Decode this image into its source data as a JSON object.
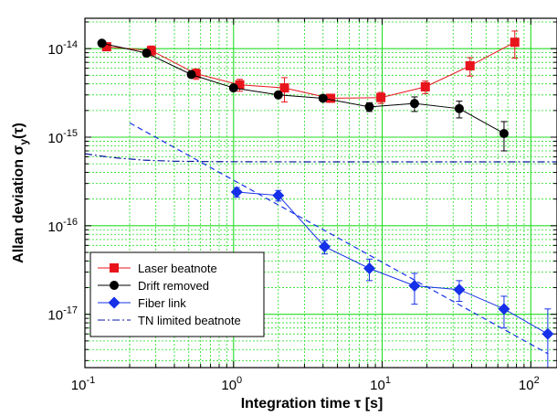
{
  "chart_data": {
    "type": "scatter",
    "xlabel": "Integration time τ   [s]",
    "ylabel_main": "Allan deviation σ",
    "ylabel_sub": "y",
    "ylabel_suffix": "(τ)",
    "xscale": "log",
    "yscale": "log",
    "xlim": [
      0.1,
      150
    ],
    "ylim": [
      2.5e-18,
      2.2e-14
    ],
    "grid": true,
    "grid_color": "#22dd22",
    "legend_position": "lower-left",
    "x_ticks": [
      {
        "value": 0.1,
        "base": "10",
        "exp": "-1"
      },
      {
        "value": 1,
        "base": "10",
        "exp": "0"
      },
      {
        "value": 10,
        "base": "10",
        "exp": "1"
      },
      {
        "value": 100,
        "base": "10",
        "exp": "2"
      }
    ],
    "y_ticks": [
      {
        "value": 1e-17,
        "base": "10",
        "exp": "-17"
      },
      {
        "value": 1e-16,
        "base": "10",
        "exp": "-16"
      },
      {
        "value": 1e-15,
        "base": "10",
        "exp": "-15"
      },
      {
        "value": 1e-14,
        "base": "10",
        "exp": "-14"
      }
    ],
    "series": [
      {
        "name": "Laser beatnote",
        "color": "#e8141c",
        "marker": "square",
        "line": "solid",
        "x": [
          0.14,
          0.28,
          0.56,
          1.1,
          2.2,
          4.5,
          9.8,
          19.5,
          39,
          78
        ],
        "y": [
          1.05e-14,
          9.5e-15,
          5.2e-15,
          3.9e-15,
          3.6e-15,
          2.75e-15,
          2.8e-15,
          3.7e-15,
          6.4e-15,
          1.18e-14
        ],
        "err": [
          0,
          1.2e-15,
          7e-16,
          6e-16,
          1.1e-15,
          0,
          4e-16,
          6e-16,
          1.5e-15,
          4e-15
        ]
      },
      {
        "name": "Drift removed",
        "color": "#000000",
        "marker": "circle",
        "line": "solid",
        "x": [
          0.13,
          0.26,
          0.52,
          1.0,
          2.0,
          4.0,
          8.2,
          16.5,
          33,
          66
        ],
        "y": [
          1.15e-14,
          8.9e-15,
          5.1e-15,
          3.6e-15,
          3e-15,
          2.75e-15,
          2.2e-15,
          2.4e-15,
          2.1e-15,
          1.1e-15
        ],
        "err": [
          0,
          0,
          0,
          0,
          0,
          0,
          2.5e-16,
          4.5e-16,
          4.5e-16,
          4e-16
        ]
      },
      {
        "name": "Fiber link",
        "color": "#1530e8",
        "marker": "diamond",
        "line": "solid",
        "x": [
          1.05,
          2.0,
          4.1,
          8.2,
          16.5,
          33,
          66,
          130
        ],
        "y": [
          2.4e-16,
          2.2e-16,
          5.8e-17,
          3.3e-17,
          2.1e-17,
          1.9e-17,
          1.15e-17,
          6e-18
        ],
        "err": [
          3e-17,
          3e-17,
          1e-17,
          9e-18,
          8e-18,
          5e-18,
          4.5e-18,
          5.5e-18
        ]
      },
      {
        "name": "",
        "color": "#1530e8",
        "marker": "none",
        "line": "dashed",
        "x": [
          0.2,
          130
        ],
        "y": [
          1.45e-15,
          3.6e-18
        ]
      },
      {
        "name": "TN limited beatnote",
        "color": "#0a1aa0",
        "marker": "none",
        "line": "dashdot",
        "x": [
          0.1,
          0.15,
          0.25,
          0.4,
          0.7,
          1.2,
          2,
          5,
          10,
          30,
          100,
          150
        ],
        "y": [
          6.5e-16,
          5.9e-16,
          5.5e-16,
          5.35e-16,
          5.3e-16,
          5.28e-16,
          5.27e-16,
          5.26e-16,
          5.26e-16,
          5.26e-16,
          5.26e-16,
          5.26e-16
        ]
      }
    ]
  }
}
